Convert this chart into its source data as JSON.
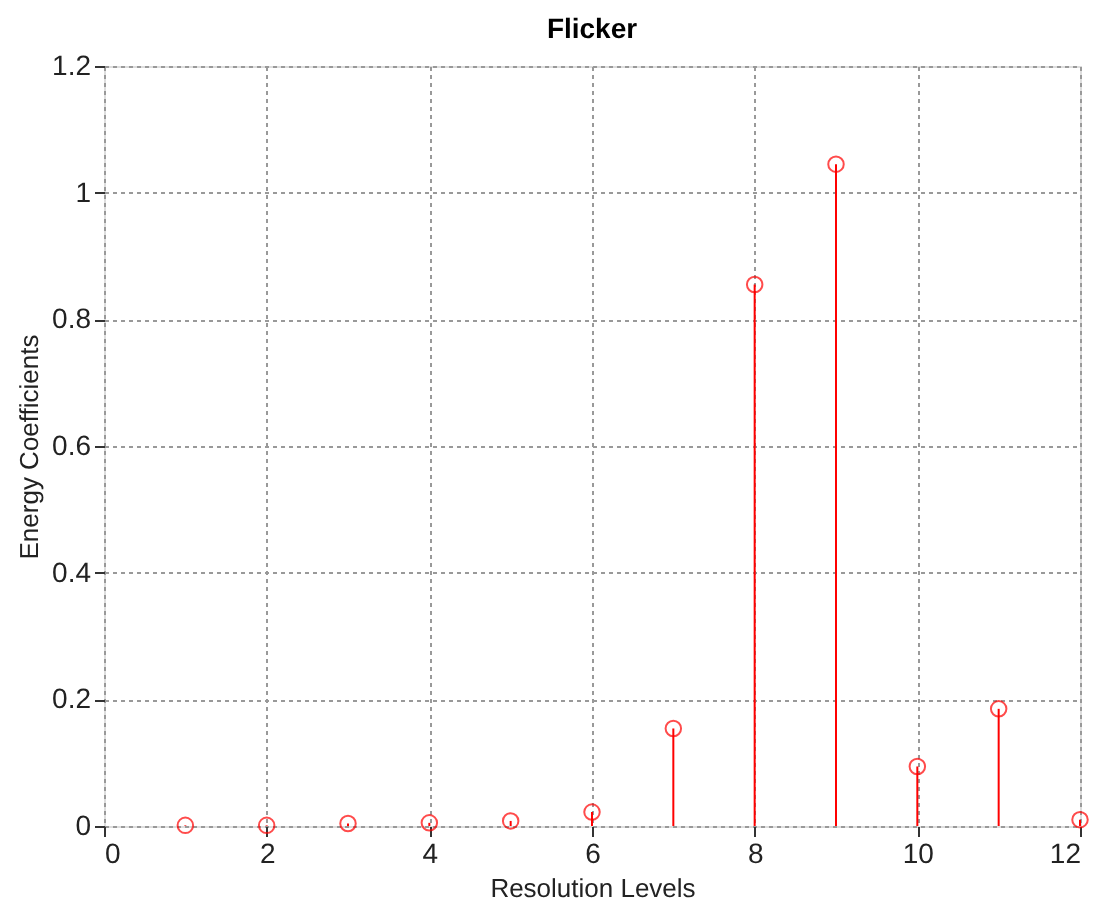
{
  "chart_data": {
    "type": "lollipop",
    "title": "Flicker",
    "xlabel": "Resolution Levels",
    "ylabel": "Energy Coefficients",
    "x": [
      1,
      2,
      3,
      4,
      5,
      6,
      7,
      8,
      9,
      10,
      11,
      12
    ],
    "values": [
      0.001,
      0.001,
      0.004,
      0.005,
      0.008,
      0.022,
      0.154,
      0.855,
      1.045,
      0.094,
      0.185,
      0.01
    ],
    "color": "#ff0000",
    "marker": "circle",
    "line_style": "solid",
    "xlim": [
      0,
      12
    ],
    "xticks": [
      0,
      2,
      4,
      6,
      8,
      10,
      12
    ],
    "ylim": [
      0,
      1.2
    ],
    "yticks": [
      0,
      0.2,
      0.4,
      0.6,
      0.8,
      1,
      1.2
    ],
    "grid": true
  }
}
